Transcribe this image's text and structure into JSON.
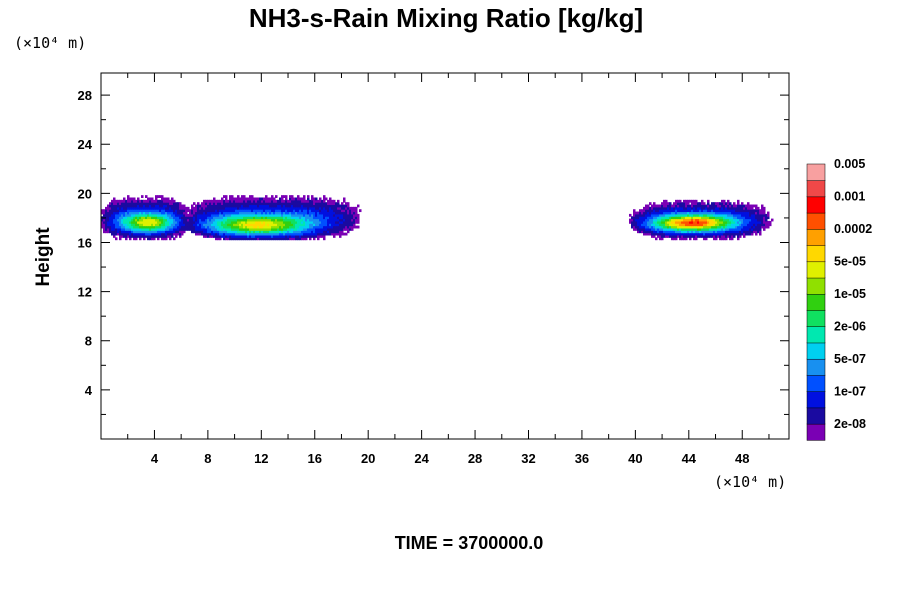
{
  "chart_data": {
    "type": "heatmap",
    "title": "NH3-s-Rain Mixing Ratio [kg/kg]",
    "xlabel": "",
    "ylabel": "Height",
    "x_unit": "(×10⁴ m)",
    "y_unit": "(×10⁴ m)",
    "xlim": [
      0,
      51.5
    ],
    "ylim": [
      0,
      29.8
    ],
    "x_ticks": [
      4,
      8,
      12,
      16,
      20,
      24,
      28,
      32,
      36,
      40,
      44,
      48
    ],
    "y_ticks": [
      4,
      8,
      12,
      16,
      20,
      24,
      28
    ],
    "footer": "TIME = 3700000.0",
    "colorbar": {
      "colors": [
        "#7a00b4",
        "#1a0aa0",
        "#0010e0",
        "#0050ff",
        "#1890f0",
        "#00d0f0",
        "#00e8b0",
        "#10e060",
        "#30d010",
        "#90e000",
        "#e0f000",
        "#ffd800",
        "#ffa000",
        "#ff5000",
        "#ff0000",
        "#f04848",
        "#f8a0a0"
      ],
      "labels": [
        "2e-08",
        "1e-07",
        "5e-07",
        "2e-06",
        "1e-05",
        "5e-05",
        "0.0002",
        "0.001",
        "0.005"
      ]
    },
    "regions": [
      {
        "name": "left cell",
        "x_range": [
          0,
          6.6
        ],
        "z_range": [
          16.4,
          19.6
        ],
        "peak_level": 9,
        "core": {
          "x": 3.5,
          "z": 17.6
        }
      },
      {
        "name": "middle cell",
        "x_range": [
          6.4,
          19.3
        ],
        "z_range": [
          16.4,
          19.7
        ],
        "peak_level": 10,
        "core": {
          "x": 11.8,
          "z": 17.4
        }
      },
      {
        "name": "right cell",
        "x_range": [
          39.8,
          50.0
        ],
        "z_range": [
          16.4,
          19.3
        ],
        "peak_level": 12,
        "core": {
          "x": 44.3,
          "z": 17.6
        }
      }
    ]
  }
}
